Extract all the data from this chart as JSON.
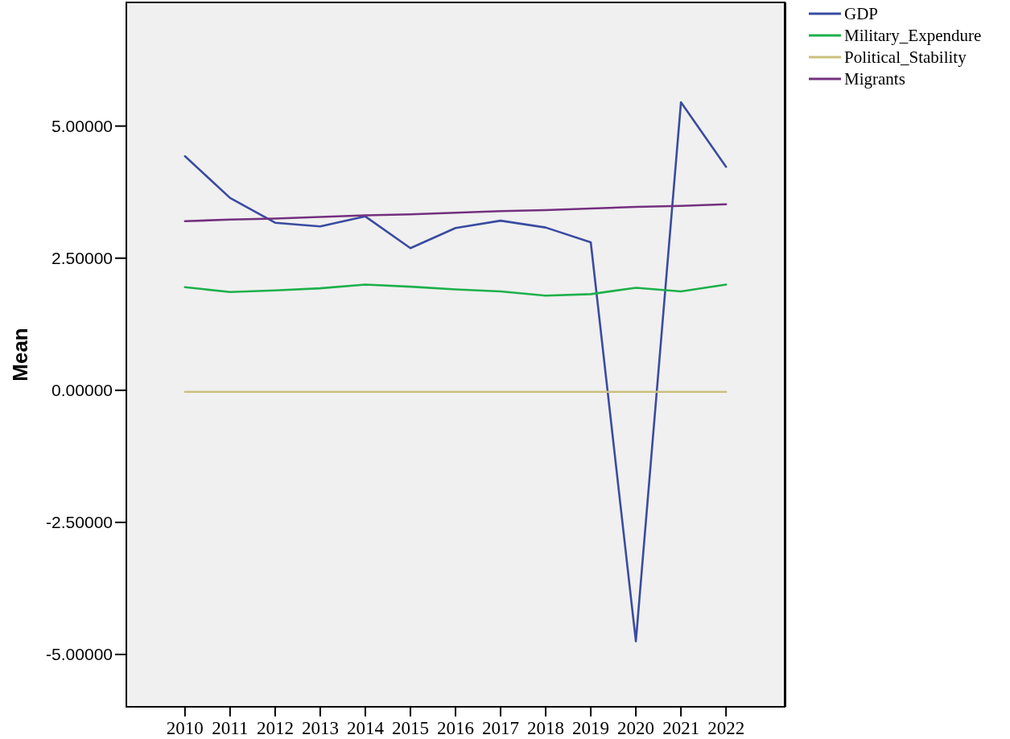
{
  "chart_data": {
    "type": "line",
    "ylabel": "Mean",
    "categories": [
      "2010",
      "2011",
      "2012",
      "2013",
      "2014",
      "2015",
      "2016",
      "2017",
      "2018",
      "2019",
      "2020",
      "2021",
      "2022"
    ],
    "series": [
      {
        "name": "GDP",
        "color": "#3a4ba0",
        "values": [
          4.43,
          3.64,
          3.17,
          3.1,
          3.29,
          2.69,
          3.07,
          3.21,
          3.08,
          2.8,
          -4.75,
          5.45,
          4.23
        ]
      },
      {
        "name": "Military_Expendure",
        "color": "#1db04a",
        "values": [
          1.95,
          1.86,
          1.89,
          1.93,
          2.0,
          1.96,
          1.91,
          1.87,
          1.79,
          1.82,
          1.94,
          1.87,
          2.0
        ]
      },
      {
        "name": "Political_Stability",
        "color": "#c9c17e",
        "values": [
          -0.03,
          -0.03,
          -0.03,
          -0.03,
          -0.03,
          -0.03,
          -0.03,
          -0.03,
          -0.03,
          -0.03,
          -0.03,
          -0.03,
          -0.03
        ]
      },
      {
        "name": "Migrants",
        "color": "#74307f",
        "values": [
          3.2,
          3.23,
          3.25,
          3.28,
          3.31,
          3.33,
          3.36,
          3.39,
          3.41,
          3.44,
          3.47,
          3.49,
          3.52
        ]
      }
    ],
    "ylim": [
      -5.99,
      7.34
    ],
    "yticks": [
      {
        "value": -5,
        "label": "-5.00000"
      },
      {
        "value": -2.5,
        "label": "-2.50000"
      },
      {
        "value": 0,
        "label": "0.00000"
      },
      {
        "value": 2.5,
        "label": "2.50000"
      },
      {
        "value": 5,
        "label": "5.00000"
      }
    ],
    "legend": "top right"
  }
}
